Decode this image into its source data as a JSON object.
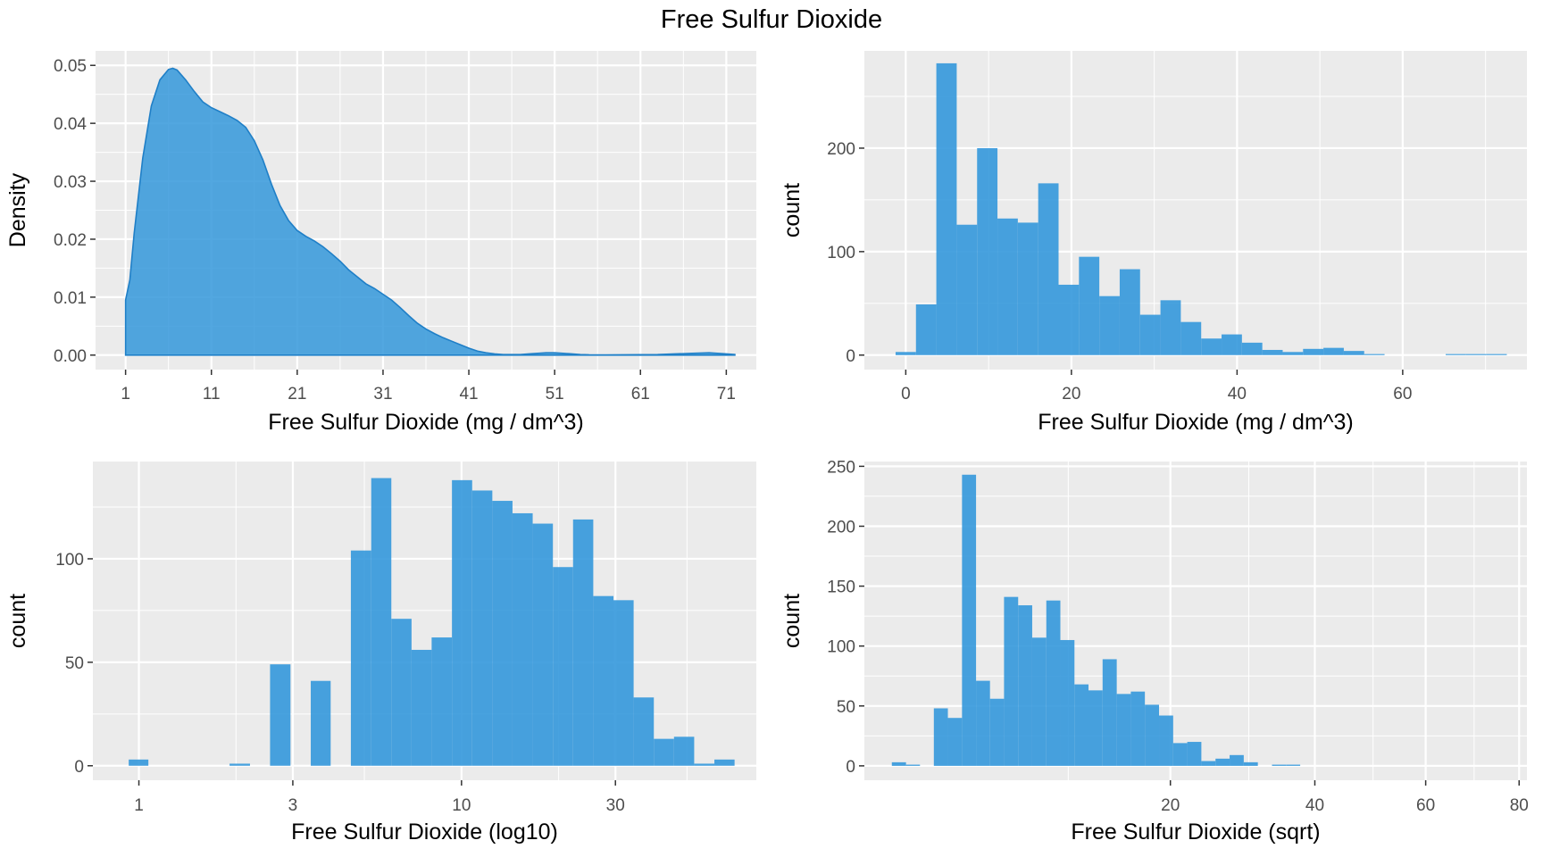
{
  "title": "Free Sulfur Dioxide",
  "colors": {
    "fill": "#3498db",
    "panel_bg": "#ebebeb",
    "grid": "#ffffff",
    "tick_text": "#4d4d4d"
  },
  "chart_data": [
    {
      "id": "density",
      "type": "area",
      "xlabel": "Free Sulfur Dioxide (mg / dm^3)",
      "ylabel": "Density",
      "xlim": [
        -2.5,
        74.5
      ],
      "ylim": [
        -0.0025,
        0.0525
      ],
      "x_ticks": [
        1,
        11,
        21,
        31,
        41,
        51,
        61,
        71
      ],
      "y_ticks": [
        0.0,
        0.01,
        0.02,
        0.03,
        0.04,
        0.05
      ],
      "y_tick_labels": [
        "0.00",
        "0.01",
        "0.02",
        "0.03",
        "0.04",
        "0.05"
      ],
      "x": [
        1,
        1.5,
        2,
        3,
        4,
        5,
        6,
        6.5,
        7,
        8,
        9,
        10,
        11,
        12,
        13,
        14,
        15,
        16,
        17,
        18,
        19,
        20,
        21,
        22,
        23,
        24,
        25,
        26,
        27,
        28,
        29,
        30,
        31,
        32,
        33,
        34,
        35,
        36,
        37,
        38,
        39,
        40,
        41,
        42,
        43,
        44,
        45,
        46,
        47,
        48,
        49,
        50,
        51,
        52,
        53,
        54,
        55,
        57,
        59,
        61,
        63,
        65,
        67,
        69,
        71,
        72
      ],
      "y": [
        0.0095,
        0.013,
        0.021,
        0.034,
        0.043,
        0.0475,
        0.0493,
        0.0495,
        0.0492,
        0.0475,
        0.0455,
        0.0437,
        0.0427,
        0.042,
        0.0413,
        0.0405,
        0.0393,
        0.037,
        0.0337,
        0.0295,
        0.0258,
        0.0232,
        0.0215,
        0.0205,
        0.0197,
        0.0187,
        0.0175,
        0.0162,
        0.0147,
        0.0135,
        0.0123,
        0.0115,
        0.0105,
        0.0095,
        0.0082,
        0.0068,
        0.0055,
        0.0045,
        0.0037,
        0.003,
        0.0024,
        0.0018,
        0.0012,
        0.0007,
        0.0004,
        0.0002,
        0.0001,
        0.0001,
        0.0001,
        0.0002,
        0.0003,
        0.0004,
        0.0004,
        0.0003,
        0.0002,
        0.0001,
        5e-05,
        3e-05,
        5e-05,
        8e-05,
        0.0001,
        0.0002,
        0.0003,
        0.0004,
        0.0002,
        0.0001
      ]
    },
    {
      "id": "hist-raw",
      "type": "bar",
      "xlabel": "Free Sulfur Dioxide (mg / dm^3)",
      "ylabel": "count",
      "xlim": [
        -5,
        75
      ],
      "ylim": [
        -14,
        294
      ],
      "x_ticks": [
        0,
        20,
        40,
        60
      ],
      "y_ticks": [
        0,
        100,
        200
      ],
      "bin_width": 2.46,
      "bin_start": -1.23,
      "values": [
        3,
        49,
        282,
        126,
        200,
        132,
        128,
        166,
        68,
        95,
        57,
        83,
        39,
        53,
        32,
        16,
        20,
        12,
        5,
        3,
        6,
        7,
        4,
        1,
        0,
        0,
        0,
        1,
        1,
        1
      ]
    },
    {
      "id": "hist-log10",
      "type": "bar",
      "xlabel": "Free Sulfur Dioxide (log10)",
      "ylabel": "count",
      "x_scale": "log10",
      "xlim": [
        0.72,
        82
      ],
      "ylim": [
        -7,
        147
      ],
      "x_ticks": [
        1,
        3,
        10,
        30
      ],
      "minor_ticks": [
        2,
        5,
        20,
        50
      ],
      "y_ticks": [
        0,
        50,
        100
      ],
      "bins": [
        {
          "lo": 0.93,
          "hi": 1.07,
          "count": 3
        },
        {
          "lo": 1.07,
          "hi": 1.24,
          "count": 0
        },
        {
          "lo": 1.24,
          "hi": 1.43,
          "count": 0
        },
        {
          "lo": 1.43,
          "hi": 1.66,
          "count": 0
        },
        {
          "lo": 1.66,
          "hi": 1.91,
          "count": 0
        },
        {
          "lo": 1.91,
          "hi": 2.21,
          "count": 1
        },
        {
          "lo": 2.21,
          "hi": 2.55,
          "count": 0
        },
        {
          "lo": 2.55,
          "hi": 2.95,
          "count": 49
        },
        {
          "lo": 2.95,
          "hi": 3.41,
          "count": 0
        },
        {
          "lo": 3.41,
          "hi": 3.93,
          "count": 41
        },
        {
          "lo": 3.93,
          "hi": 4.54,
          "count": 0
        },
        {
          "lo": 4.54,
          "hi": 5.25,
          "count": 104
        },
        {
          "lo": 5.25,
          "hi": 6.06,
          "count": 139
        },
        {
          "lo": 6.06,
          "hi": 7.0,
          "count": 71
        },
        {
          "lo": 7.0,
          "hi": 8.08,
          "count": 56
        },
        {
          "lo": 8.08,
          "hi": 9.34,
          "count": 62
        },
        {
          "lo": 9.34,
          "hi": 10.79,
          "count": 138
        },
        {
          "lo": 10.79,
          "hi": 12.46,
          "count": 133
        },
        {
          "lo": 12.46,
          "hi": 14.39,
          "count": 128
        },
        {
          "lo": 14.39,
          "hi": 16.62,
          "count": 122
        },
        {
          "lo": 16.62,
          "hi": 19.2,
          "count": 117
        },
        {
          "lo": 19.2,
          "hi": 22.17,
          "count": 96
        },
        {
          "lo": 22.17,
          "hi": 25.61,
          "count": 119
        },
        {
          "lo": 25.61,
          "hi": 29.58,
          "count": 82
        },
        {
          "lo": 29.58,
          "hi": 34.16,
          "count": 80
        },
        {
          "lo": 34.16,
          "hi": 39.46,
          "count": 33
        },
        {
          "lo": 39.46,
          "hi": 45.57,
          "count": 13
        },
        {
          "lo": 45.57,
          "hi": 52.63,
          "count": 14
        },
        {
          "lo": 52.63,
          "hi": 60.79,
          "count": 1
        },
        {
          "lo": 60.79,
          "hi": 70.21,
          "count": 3
        }
      ]
    },
    {
      "id": "hist-sqrt",
      "type": "bar",
      "xlabel": "Free Sulfur Dioxide (sqrt)",
      "ylabel": "count",
      "x_scale": "sqrt",
      "xlim": [
        0.3,
        81.8
      ],
      "ylim": [
        -12,
        254
      ],
      "x_ticks": [
        20,
        40,
        60,
        80
      ],
      "minor_ticks": [
        10,
        30,
        50,
        70
      ],
      "y_ticks": [
        0,
        50,
        100,
        150,
        200,
        250
      ],
      "bins": [
        {
          "lo": 0.81,
          "hi": 1.17,
          "count": 3
        },
        {
          "lo": 1.17,
          "hi": 1.59,
          "count": 1
        },
        {
          "lo": 1.59,
          "hi": 2.07,
          "count": 0
        },
        {
          "lo": 2.07,
          "hi": 2.62,
          "count": 48
        },
        {
          "lo": 2.62,
          "hi": 3.24,
          "count": 40
        },
        {
          "lo": 3.24,
          "hi": 3.92,
          "count": 243
        },
        {
          "lo": 3.92,
          "hi": 4.66,
          "count": 71
        },
        {
          "lo": 4.66,
          "hi": 5.47,
          "count": 56
        },
        {
          "lo": 5.47,
          "hi": 6.35,
          "count": 141
        },
        {
          "lo": 6.35,
          "hi": 7.29,
          "count": 134
        },
        {
          "lo": 7.29,
          "hi": 8.3,
          "count": 107
        },
        {
          "lo": 8.3,
          "hi": 9.37,
          "count": 138
        },
        {
          "lo": 9.37,
          "hi": 10.51,
          "count": 105
        },
        {
          "lo": 10.51,
          "hi": 11.71,
          "count": 68
        },
        {
          "lo": 11.71,
          "hi": 12.98,
          "count": 63
        },
        {
          "lo": 12.98,
          "hi": 14.32,
          "count": 89
        },
        {
          "lo": 14.32,
          "hi": 15.72,
          "count": 60
        },
        {
          "lo": 15.72,
          "hi": 17.18,
          "count": 62
        },
        {
          "lo": 17.18,
          "hi": 18.72,
          "count": 51
        },
        {
          "lo": 18.72,
          "hi": 20.32,
          "count": 42
        },
        {
          "lo": 20.32,
          "hi": 21.98,
          "count": 19
        },
        {
          "lo": 21.98,
          "hi": 23.71,
          "count": 20
        },
        {
          "lo": 23.71,
          "hi": 25.51,
          "count": 4
        },
        {
          "lo": 25.51,
          "hi": 27.37,
          "count": 6
        },
        {
          "lo": 27.37,
          "hi": 29.3,
          "count": 9
        },
        {
          "lo": 29.3,
          "hi": 31.29,
          "count": 3
        },
        {
          "lo": 31.29,
          "hi": 33.35,
          "count": 0
        },
        {
          "lo": 33.35,
          "hi": 35.47,
          "count": 1
        },
        {
          "lo": 35.47,
          "hi": 37.66,
          "count": 1
        },
        {
          "lo": 37.66,
          "hi": 39.92,
          "count": 0
        }
      ]
    }
  ]
}
